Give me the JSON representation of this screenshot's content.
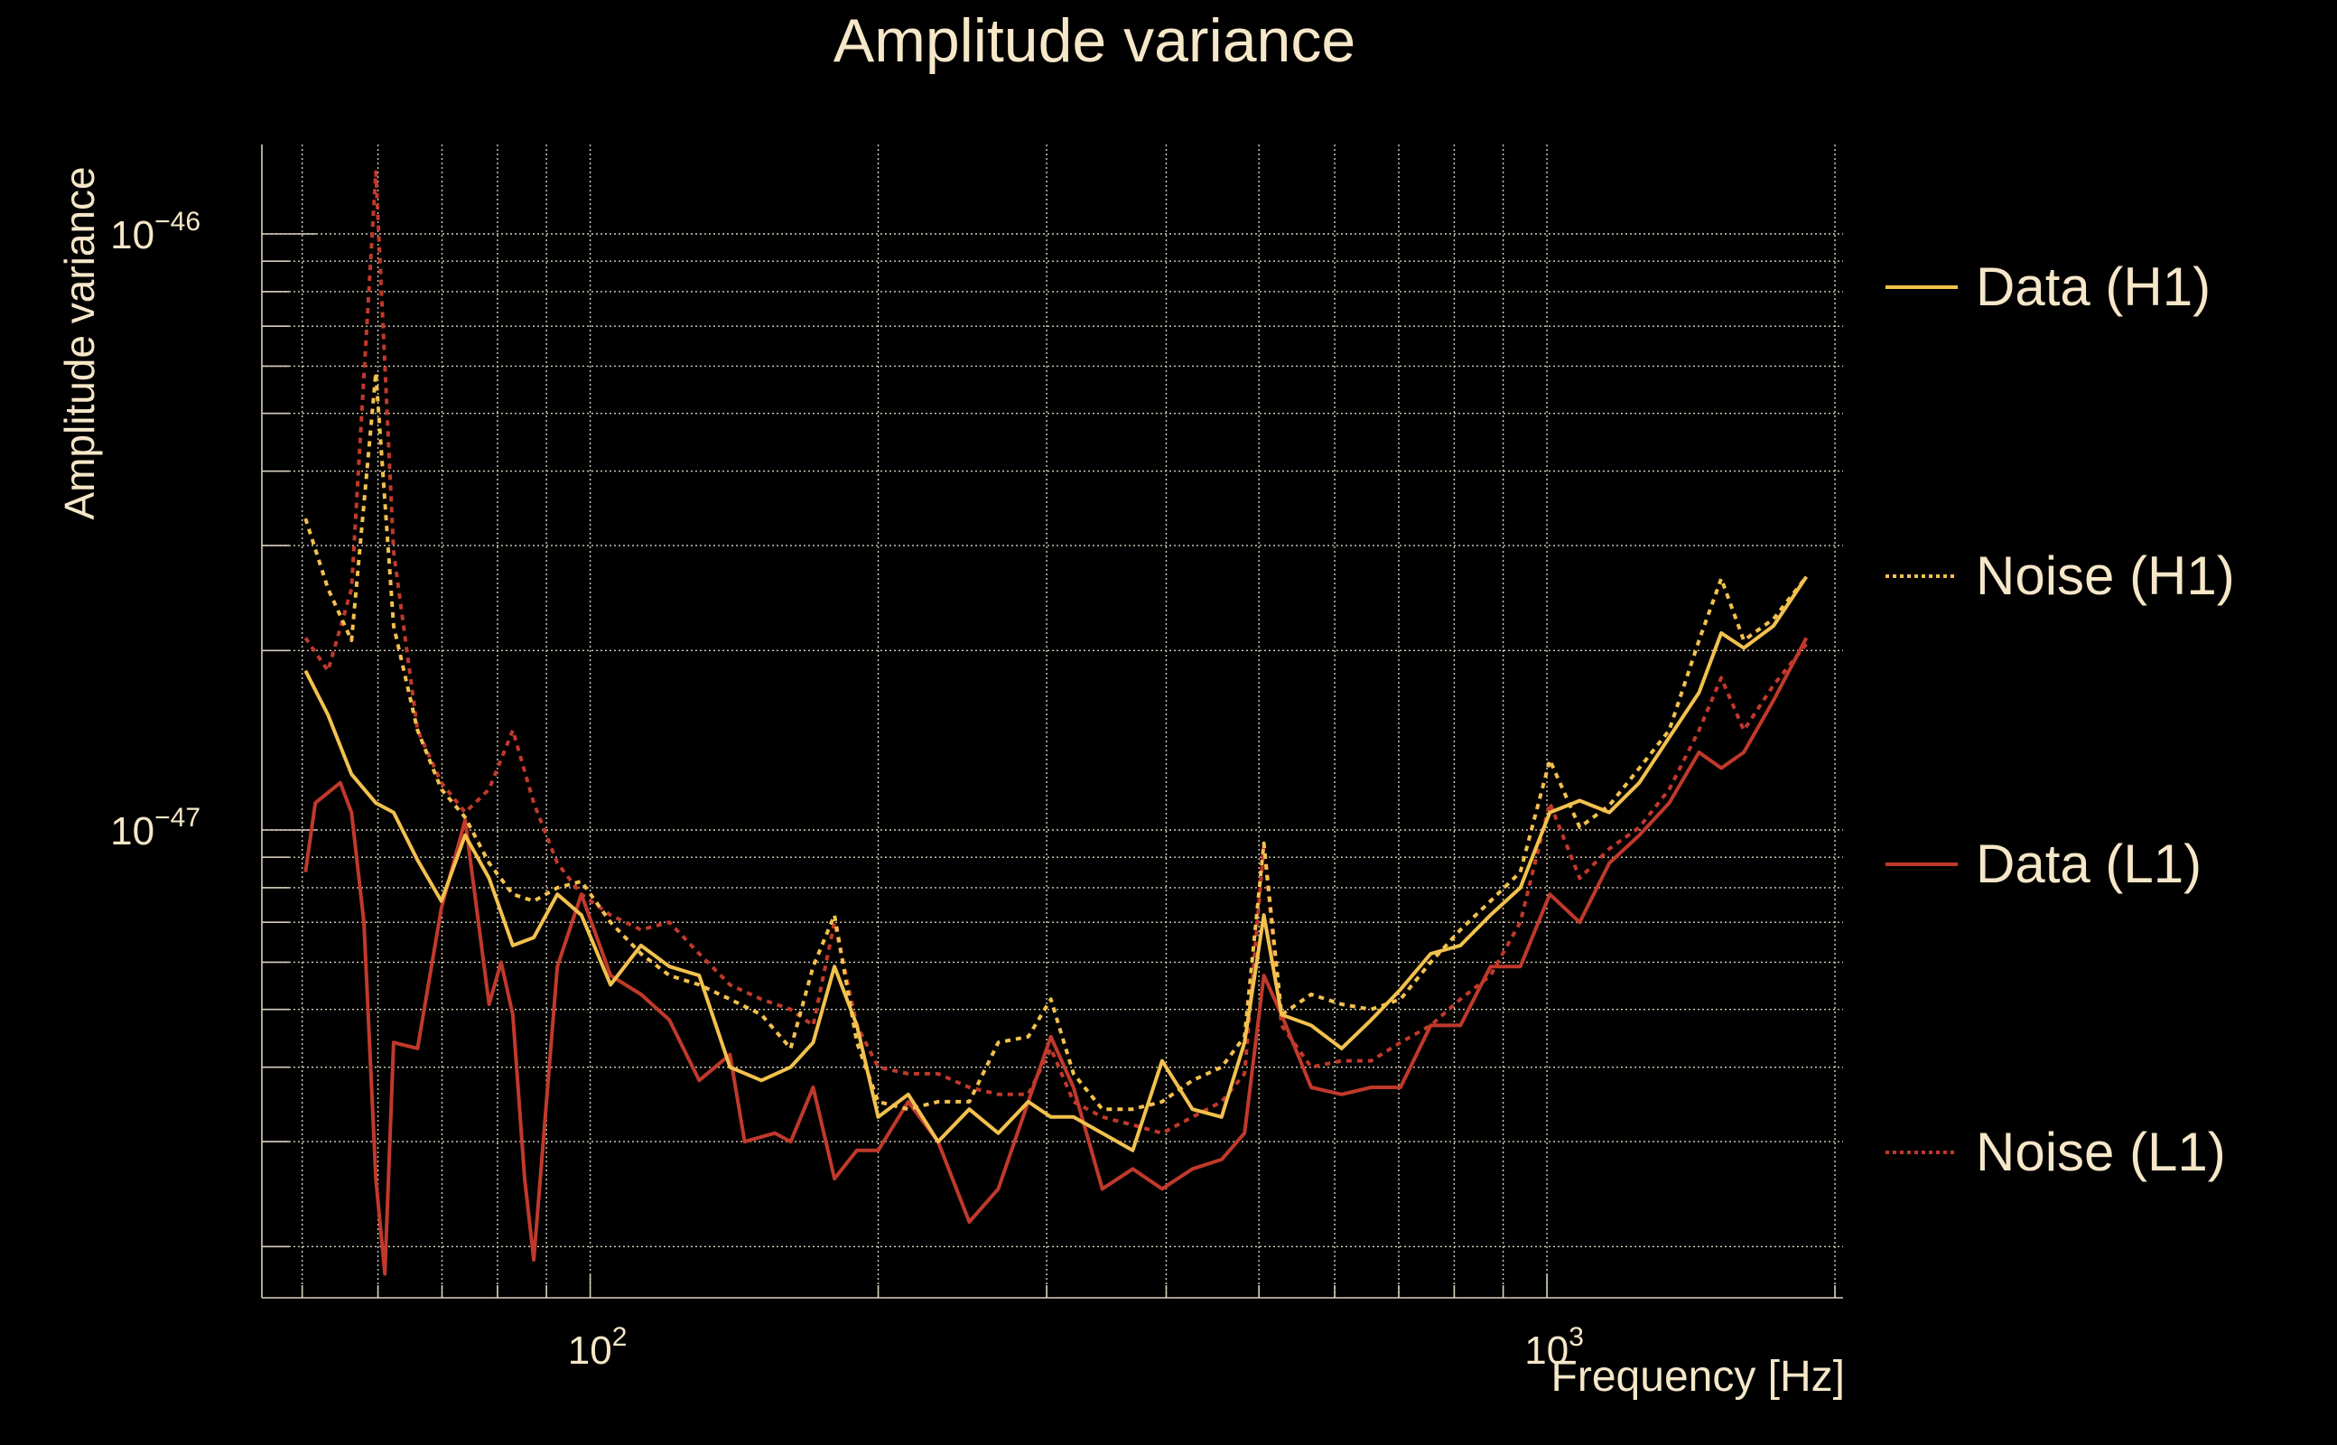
{
  "chart_data": {
    "type": "line",
    "title": "Amplitude variance",
    "xlabel": "Frequency [Hz]",
    "ylabel": "Amplitude variance",
    "xscale": "log",
    "yscale": "log",
    "xlim": [
      44,
      2042
    ],
    "ylim": [
      1.64e-48,
      1.41e-46
    ],
    "grid": true,
    "legend_position": "right-outside",
    "value_scale": 1e-47,
    "x_ticks": [
      {
        "value": 100,
        "base": "10",
        "exp": "2"
      },
      {
        "value": 1000,
        "base": "10",
        "exp": "3"
      }
    ],
    "y_ticks": [
      {
        "value": 1e-46,
        "base": "10",
        "exp": "−46"
      },
      {
        "value": 1e-47,
        "base": "10",
        "exp": "−47"
      }
    ],
    "series": [
      {
        "name": "Data (H1)",
        "color": "#f2c14e",
        "style": "solid",
        "x": [
          50.4,
          53.2,
          56.3,
          59.7,
          62.3,
          66,
          69.9,
          74,
          78.4,
          83,
          87.3,
          92.4,
          97.9,
          105,
          113,
          121,
          130,
          140,
          151,
          162,
          171,
          180,
          190,
          200,
          215,
          231,
          249,
          267,
          287,
          303,
          320,
          343,
          369,
          396,
          426,
          457,
          483,
          506,
          528,
          567,
          610,
          655,
          703,
          756,
          812,
          873,
          938,
          1007,
          1082,
          1162,
          1249,
          1342,
          1442,
          1521,
          1606,
          1725,
          1867
        ],
        "values": [
          1.85,
          1.56,
          1.24,
          1.11,
          1.07,
          0.89,
          0.76,
          0.98,
          0.83,
          0.64,
          0.66,
          0.78,
          0.72,
          0.55,
          0.64,
          0.59,
          0.57,
          0.4,
          0.38,
          0.4,
          0.44,
          0.59,
          0.47,
          0.33,
          0.36,
          0.3,
          0.34,
          0.31,
          0.35,
          0.33,
          0.33,
          0.31,
          0.29,
          0.41,
          0.34,
          0.33,
          0.44,
          0.72,
          0.49,
          0.47,
          0.43,
          0.48,
          0.54,
          0.62,
          0.64,
          0.72,
          0.8,
          1.07,
          1.12,
          1.07,
          1.2,
          1.43,
          1.7,
          2.14,
          2.02,
          2.2,
          2.66
        ]
      },
      {
        "name": "Noise (H1)",
        "color": "#f2c14e",
        "style": "dotted",
        "x": [
          50.4,
          53.2,
          56.3,
          59.7,
          62.3,
          66,
          69.9,
          74,
          78.4,
          83,
          87.3,
          92.4,
          97.9,
          105,
          113,
          121,
          130,
          140,
          151,
          162,
          171,
          180,
          190,
          200,
          215,
          231,
          249,
          267,
          287,
          303,
          320,
          343,
          369,
          396,
          426,
          457,
          483,
          506,
          528,
          567,
          610,
          655,
          703,
          756,
          812,
          873,
          938,
          1007,
          1082,
          1162,
          1249,
          1342,
          1442,
          1521,
          1606,
          1725,
          1867
        ],
        "values": [
          3.33,
          2.54,
          2.08,
          5.85,
          2.2,
          1.47,
          1.17,
          1.05,
          0.88,
          0.78,
          0.76,
          0.8,
          0.82,
          0.7,
          0.62,
          0.57,
          0.55,
          0.52,
          0.49,
          0.43,
          0.59,
          0.72,
          0.44,
          0.35,
          0.34,
          0.35,
          0.35,
          0.44,
          0.45,
          0.52,
          0.39,
          0.34,
          0.34,
          0.35,
          0.38,
          0.4,
          0.45,
          0.95,
          0.49,
          0.53,
          0.51,
          0.5,
          0.52,
          0.6,
          0.68,
          0.76,
          0.85,
          1.31,
          1.01,
          1.1,
          1.27,
          1.47,
          2.08,
          2.64,
          2.08,
          2.26,
          2.66
        ]
      },
      {
        "name": "Data (L1)",
        "color": "#c0392b",
        "style": "solid",
        "x": [
          50.4,
          51.6,
          54.8,
          56.3,
          58.0,
          59.7,
          61.0,
          62.3,
          66,
          69.9,
          74,
          78.4,
          80.7,
          83,
          85.4,
          87.3,
          92.4,
          97.9,
          105,
          113,
          121,
          130,
          140,
          145,
          156,
          162,
          171,
          180,
          190,
          200,
          215,
          231,
          249,
          267,
          287,
          303,
          320,
          343,
          369,
          396,
          426,
          457,
          483,
          506,
          528,
          567,
          610,
          655,
          703,
          756,
          812,
          873,
          938,
          1007,
          1082,
          1162,
          1249,
          1342,
          1442,
          1521,
          1606,
          1725,
          1867
        ],
        "values": [
          0.85,
          1.11,
          1.2,
          1.07,
          0.7,
          0.26,
          0.18,
          0.44,
          0.43,
          0.74,
          1.04,
          0.51,
          0.6,
          0.49,
          0.26,
          0.19,
          0.59,
          0.78,
          0.57,
          0.53,
          0.48,
          0.38,
          0.42,
          0.3,
          0.31,
          0.3,
          0.37,
          0.26,
          0.29,
          0.29,
          0.35,
          0.3,
          0.22,
          0.25,
          0.35,
          0.45,
          0.37,
          0.25,
          0.27,
          0.25,
          0.27,
          0.28,
          0.31,
          0.57,
          0.49,
          0.37,
          0.36,
          0.37,
          0.37,
          0.47,
          0.47,
          0.59,
          0.59,
          0.78,
          0.7,
          0.88,
          0.98,
          1.11,
          1.35,
          1.27,
          1.35,
          1.65,
          2.1
        ]
      },
      {
        "name": "Noise (L1)",
        "color": "#c0392b",
        "style": "dotted",
        "x": [
          50.4,
          53.2,
          56.3,
          59.7,
          62.3,
          66,
          69.9,
          74,
          78.4,
          83,
          87.3,
          92.4,
          97.9,
          105,
          113,
          121,
          130,
          140,
          151,
          162,
          171,
          180,
          190,
          200,
          215,
          231,
          249,
          267,
          287,
          303,
          320,
          343,
          369,
          396,
          426,
          457,
          483,
          506,
          528,
          567,
          610,
          655,
          703,
          756,
          812,
          873,
          938,
          1007,
          1082,
          1162,
          1249,
          1342,
          1442,
          1521,
          1606,
          1725,
          1867
        ],
        "values": [
          2.1,
          1.85,
          2.54,
          12.7,
          2.93,
          1.47,
          1.2,
          1.07,
          1.17,
          1.47,
          1.11,
          0.88,
          0.78,
          0.72,
          0.68,
          0.7,
          0.62,
          0.55,
          0.52,
          0.5,
          0.47,
          0.7,
          0.47,
          0.4,
          0.39,
          0.39,
          0.37,
          0.36,
          0.36,
          0.43,
          0.35,
          0.33,
          0.32,
          0.31,
          0.33,
          0.35,
          0.39,
          0.94,
          0.47,
          0.4,
          0.41,
          0.41,
          0.44,
          0.47,
          0.52,
          0.57,
          0.7,
          1.11,
          0.83,
          0.93,
          1.01,
          1.17,
          1.47,
          1.8,
          1.47,
          1.75,
          2.05
        ]
      }
    ]
  }
}
